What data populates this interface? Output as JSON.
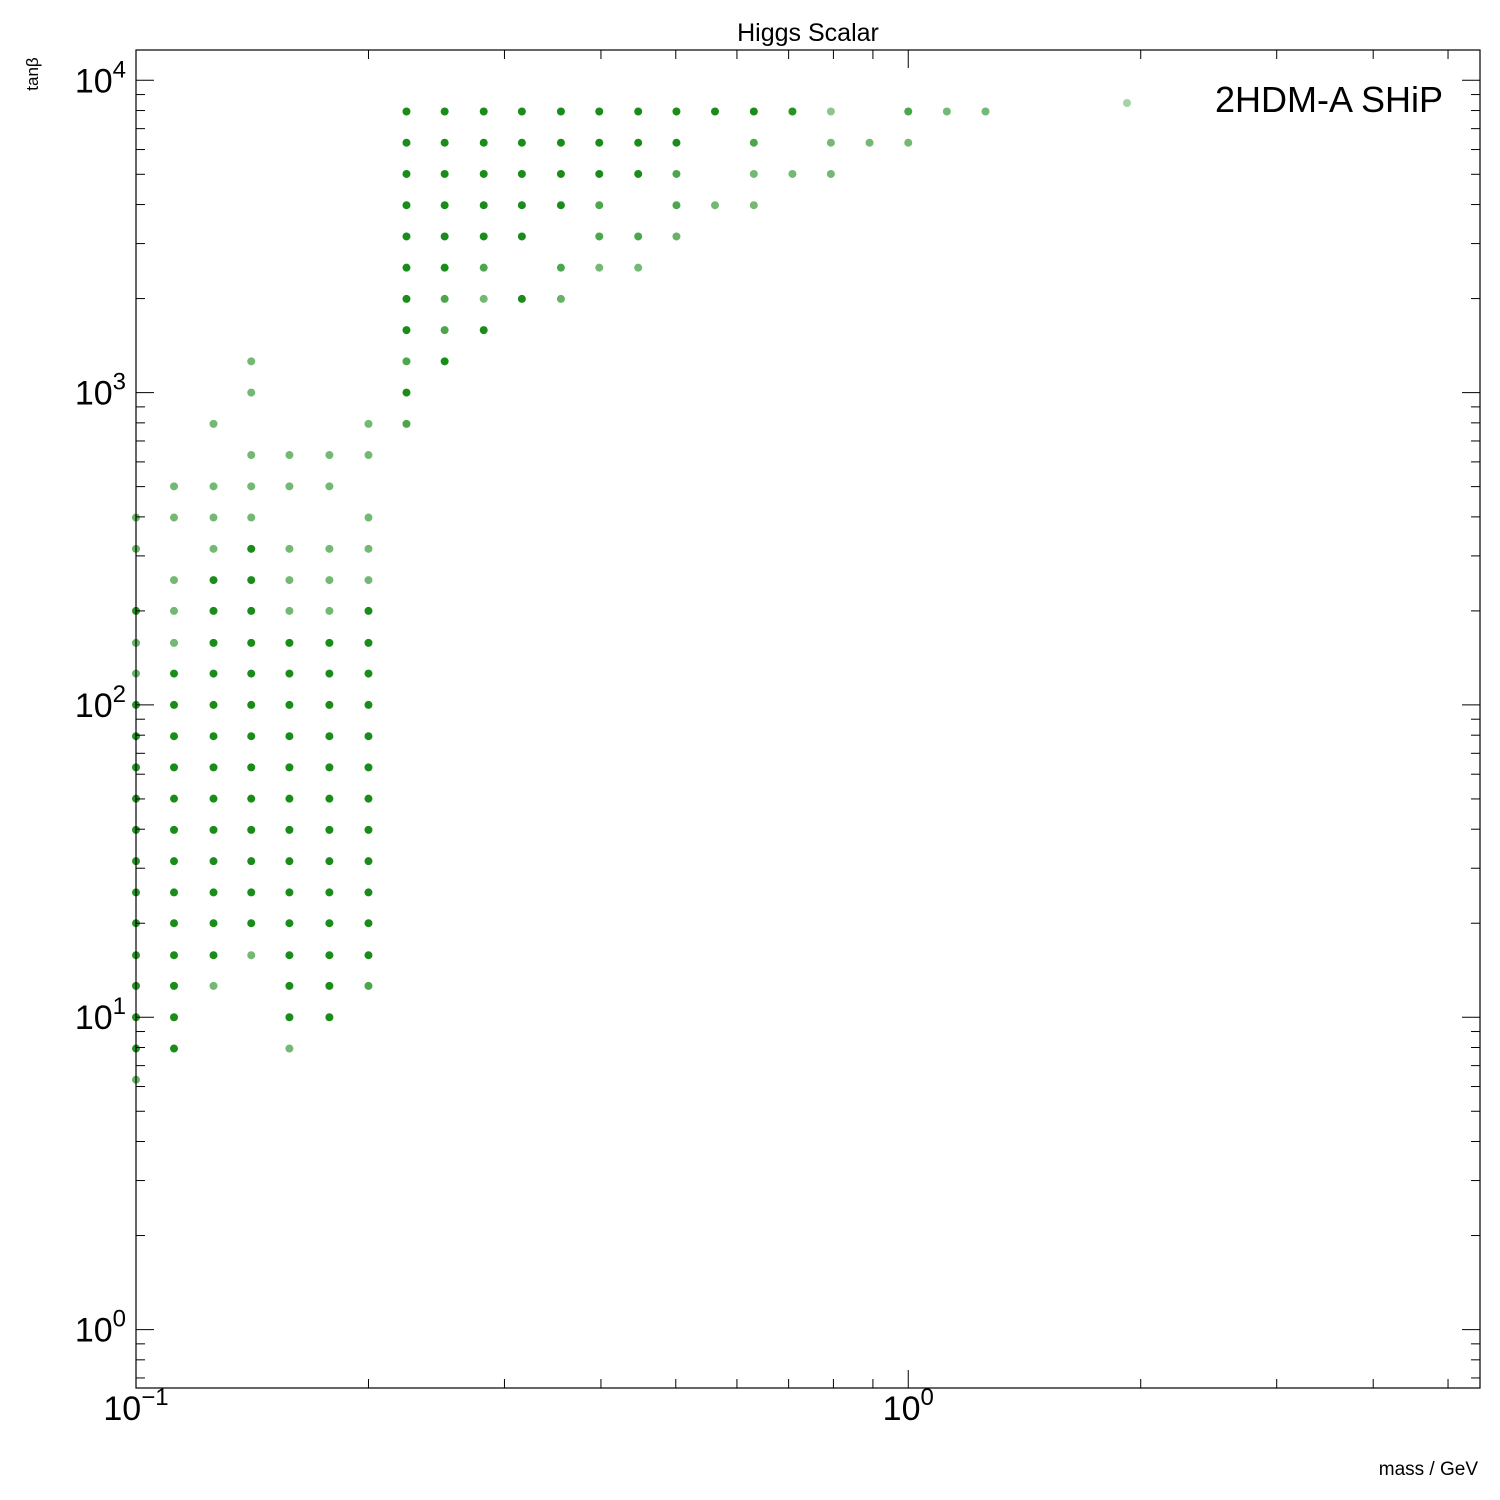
{
  "chart_data": {
    "type": "scatter",
    "title": "Higgs Scalar",
    "xlabel": "mass / GeV",
    "ylabel": "tanβ",
    "xscale": "log",
    "yscale": "log",
    "xlim": [
      0.1,
      5.5
    ],
    "ylim": [
      0.65,
      12500
    ],
    "x_major_ticks": [
      {
        "value": 0.1,
        "base": "10",
        "exp": "−1"
      },
      {
        "value": 1,
        "base": "10",
        "exp": "0"
      }
    ],
    "y_major_ticks": [
      {
        "value": 1,
        "base": "10",
        "exp": "0"
      },
      {
        "value": 10,
        "base": "10",
        "exp": "1"
      },
      {
        "value": 100,
        "base": "10",
        "exp": "2"
      },
      {
        "value": 1000,
        "base": "10",
        "exp": "3"
      },
      {
        "value": 10000,
        "base": "10",
        "exp": "4"
      }
    ],
    "legend": {
      "label": "2HDM-A SHiP",
      "placement": "top-right"
    },
    "series": [
      {
        "name": "2HDM-A SHiP",
        "color": "#008000",
        "marker": "circle",
        "points": [
          {
            "x": 0.1,
            "y": 6.31,
            "o": 0.6
          },
          {
            "x": 0.1,
            "y": 7.94,
            "o": 0.85
          },
          {
            "x": 0.1,
            "y": 10,
            "o": 0.85
          },
          {
            "x": 0.1,
            "y": 12.6,
            "o": 0.85
          },
          {
            "x": 0.1,
            "y": 15.8,
            "o": 0.85
          },
          {
            "x": 0.1,
            "y": 20,
            "o": 0.85
          },
          {
            "x": 0.1,
            "y": 25.1,
            "o": 0.85
          },
          {
            "x": 0.1,
            "y": 31.6,
            "o": 0.85
          },
          {
            "x": 0.1,
            "y": 39.8,
            "o": 0.85
          },
          {
            "x": 0.1,
            "y": 50.1,
            "o": 0.85
          },
          {
            "x": 0.1,
            "y": 63.1,
            "o": 0.85
          },
          {
            "x": 0.1,
            "y": 79.4,
            "o": 0.85
          },
          {
            "x": 0.1,
            "y": 100,
            "o": 0.85
          },
          {
            "x": 0.1,
            "y": 126,
            "o": 0.6
          },
          {
            "x": 0.1,
            "y": 158,
            "o": 0.6
          },
          {
            "x": 0.1,
            "y": 200,
            "o": 0.85
          },
          {
            "x": 0.1,
            "y": 316,
            "o": 0.6
          },
          {
            "x": 0.1,
            "y": 398,
            "o": 0.6
          },
          {
            "x": 0.112,
            "y": 7.94,
            "o": 0.9
          },
          {
            "x": 0.112,
            "y": 10,
            "o": 0.9
          },
          {
            "x": 0.112,
            "y": 12.6,
            "o": 0.9
          },
          {
            "x": 0.112,
            "y": 15.8,
            "o": 0.9
          },
          {
            "x": 0.112,
            "y": 20,
            "o": 0.9
          },
          {
            "x": 0.112,
            "y": 25.1,
            "o": 0.9
          },
          {
            "x": 0.112,
            "y": 31.6,
            "o": 0.9
          },
          {
            "x": 0.112,
            "y": 39.8,
            "o": 0.9
          },
          {
            "x": 0.112,
            "y": 50.1,
            "o": 0.9
          },
          {
            "x": 0.112,
            "y": 63.1,
            "o": 0.9
          },
          {
            "x": 0.112,
            "y": 79.4,
            "o": 0.9
          },
          {
            "x": 0.112,
            "y": 100,
            "o": 0.9
          },
          {
            "x": 0.112,
            "y": 126,
            "o": 0.9
          },
          {
            "x": 0.112,
            "y": 158,
            "o": 0.55
          },
          {
            "x": 0.112,
            "y": 200,
            "o": 0.55
          },
          {
            "x": 0.112,
            "y": 251,
            "o": 0.55
          },
          {
            "x": 0.112,
            "y": 398,
            "o": 0.55
          },
          {
            "x": 0.112,
            "y": 501,
            "o": 0.55
          },
          {
            "x": 0.126,
            "y": 12.6,
            "o": 0.55
          },
          {
            "x": 0.126,
            "y": 15.8,
            "o": 0.9
          },
          {
            "x": 0.126,
            "y": 20,
            "o": 0.9
          },
          {
            "x": 0.126,
            "y": 25.1,
            "o": 0.9
          },
          {
            "x": 0.126,
            "y": 31.6,
            "o": 0.9
          },
          {
            "x": 0.126,
            "y": 39.8,
            "o": 0.9
          },
          {
            "x": 0.126,
            "y": 50.1,
            "o": 0.9
          },
          {
            "x": 0.126,
            "y": 63.1,
            "o": 0.9
          },
          {
            "x": 0.126,
            "y": 79.4,
            "o": 0.9
          },
          {
            "x": 0.126,
            "y": 100,
            "o": 0.9
          },
          {
            "x": 0.126,
            "y": 126,
            "o": 0.9
          },
          {
            "x": 0.126,
            "y": 158,
            "o": 0.9
          },
          {
            "x": 0.126,
            "y": 200,
            "o": 0.9
          },
          {
            "x": 0.126,
            "y": 251,
            "o": 0.9
          },
          {
            "x": 0.126,
            "y": 316,
            "o": 0.55
          },
          {
            "x": 0.126,
            "y": 398,
            "o": 0.55
          },
          {
            "x": 0.126,
            "y": 501,
            "o": 0.55
          },
          {
            "x": 0.126,
            "y": 794,
            "o": 0.55
          },
          {
            "x": 0.141,
            "y": 15.8,
            "o": 0.55
          },
          {
            "x": 0.141,
            "y": 20,
            "o": 0.9
          },
          {
            "x": 0.141,
            "y": 25.1,
            "o": 0.9
          },
          {
            "x": 0.141,
            "y": 31.6,
            "o": 0.9
          },
          {
            "x": 0.141,
            "y": 39.8,
            "o": 0.9
          },
          {
            "x": 0.141,
            "y": 50.1,
            "o": 0.9
          },
          {
            "x": 0.141,
            "y": 63.1,
            "o": 0.9
          },
          {
            "x": 0.141,
            "y": 79.4,
            "o": 0.9
          },
          {
            "x": 0.141,
            "y": 100,
            "o": 0.9
          },
          {
            "x": 0.141,
            "y": 126,
            "o": 0.9
          },
          {
            "x": 0.141,
            "y": 158,
            "o": 0.9
          },
          {
            "x": 0.141,
            "y": 200,
            "o": 0.9
          },
          {
            "x": 0.141,
            "y": 251,
            "o": 0.9
          },
          {
            "x": 0.141,
            "y": 316,
            "o": 0.9
          },
          {
            "x": 0.141,
            "y": 398,
            "o": 0.55
          },
          {
            "x": 0.141,
            "y": 501,
            "o": 0.55
          },
          {
            "x": 0.141,
            "y": 631,
            "o": 0.55
          },
          {
            "x": 0.141,
            "y": 1000,
            "o": 0.55
          },
          {
            "x": 0.141,
            "y": 1259,
            "o": 0.55
          },
          {
            "x": 0.158,
            "y": 7.94,
            "o": 0.55
          },
          {
            "x": 0.158,
            "y": 10,
            "o": 0.9
          },
          {
            "x": 0.158,
            "y": 12.6,
            "o": 0.9
          },
          {
            "x": 0.158,
            "y": 15.8,
            "o": 0.9
          },
          {
            "x": 0.158,
            "y": 20,
            "o": 0.9
          },
          {
            "x": 0.158,
            "y": 25.1,
            "o": 0.9
          },
          {
            "x": 0.158,
            "y": 31.6,
            "o": 0.9
          },
          {
            "x": 0.158,
            "y": 39.8,
            "o": 0.9
          },
          {
            "x": 0.158,
            "y": 50.1,
            "o": 0.9
          },
          {
            "x": 0.158,
            "y": 63.1,
            "o": 0.9
          },
          {
            "x": 0.158,
            "y": 79.4,
            "o": 0.9
          },
          {
            "x": 0.158,
            "y": 100,
            "o": 0.9
          },
          {
            "x": 0.158,
            "y": 126,
            "o": 0.9
          },
          {
            "x": 0.158,
            "y": 158,
            "o": 0.9
          },
          {
            "x": 0.158,
            "y": 200,
            "o": 0.55
          },
          {
            "x": 0.158,
            "y": 251,
            "o": 0.55
          },
          {
            "x": 0.158,
            "y": 316,
            "o": 0.55
          },
          {
            "x": 0.158,
            "y": 501,
            "o": 0.55
          },
          {
            "x": 0.158,
            "y": 631,
            "o": 0.55
          },
          {
            "x": 0.178,
            "y": 10,
            "o": 0.9
          },
          {
            "x": 0.178,
            "y": 12.6,
            "o": 0.9
          },
          {
            "x": 0.178,
            "y": 15.8,
            "o": 0.9
          },
          {
            "x": 0.178,
            "y": 20,
            "o": 0.9
          },
          {
            "x": 0.178,
            "y": 25.1,
            "o": 0.9
          },
          {
            "x": 0.178,
            "y": 31.6,
            "o": 0.9
          },
          {
            "x": 0.178,
            "y": 39.8,
            "o": 0.9
          },
          {
            "x": 0.178,
            "y": 50.1,
            "o": 0.9
          },
          {
            "x": 0.178,
            "y": 63.1,
            "o": 0.9
          },
          {
            "x": 0.178,
            "y": 79.4,
            "o": 0.9
          },
          {
            "x": 0.178,
            "y": 100,
            "o": 0.9
          },
          {
            "x": 0.178,
            "y": 126,
            "o": 0.9
          },
          {
            "x": 0.178,
            "y": 158,
            "o": 0.9
          },
          {
            "x": 0.178,
            "y": 200,
            "o": 0.55
          },
          {
            "x": 0.178,
            "y": 251,
            "o": 0.55
          },
          {
            "x": 0.178,
            "y": 316,
            "o": 0.55
          },
          {
            "x": 0.178,
            "y": 501,
            "o": 0.55
          },
          {
            "x": 0.178,
            "y": 631,
            "o": 0.55
          },
          {
            "x": 0.2,
            "y": 12.6,
            "o": 0.7
          },
          {
            "x": 0.2,
            "y": 15.8,
            "o": 0.9
          },
          {
            "x": 0.2,
            "y": 20,
            "o": 0.9
          },
          {
            "x": 0.2,
            "y": 25.1,
            "o": 0.9
          },
          {
            "x": 0.2,
            "y": 31.6,
            "o": 0.9
          },
          {
            "x": 0.2,
            "y": 39.8,
            "o": 0.9
          },
          {
            "x": 0.2,
            "y": 50.1,
            "o": 0.9
          },
          {
            "x": 0.2,
            "y": 63.1,
            "o": 0.9
          },
          {
            "x": 0.2,
            "y": 79.4,
            "o": 0.9
          },
          {
            "x": 0.2,
            "y": 100,
            "o": 0.9
          },
          {
            "x": 0.2,
            "y": 126,
            "o": 0.9
          },
          {
            "x": 0.2,
            "y": 158,
            "o": 0.9
          },
          {
            "x": 0.2,
            "y": 200,
            "o": 0.9
          },
          {
            "x": 0.2,
            "y": 251,
            "o": 0.55
          },
          {
            "x": 0.2,
            "y": 316,
            "o": 0.55
          },
          {
            "x": 0.2,
            "y": 398,
            "o": 0.55
          },
          {
            "x": 0.2,
            "y": 631,
            "o": 0.55
          },
          {
            "x": 0.2,
            "y": 794,
            "o": 0.55
          },
          {
            "x": 0.224,
            "y": 794,
            "o": 0.7
          },
          {
            "x": 0.224,
            "y": 1000,
            "o": 0.9
          },
          {
            "x": 0.224,
            "y": 1259,
            "o": 0.7
          },
          {
            "x": 0.224,
            "y": 1585,
            "o": 0.9
          },
          {
            "x": 0.224,
            "y": 1995,
            "o": 0.9
          },
          {
            "x": 0.224,
            "y": 2512,
            "o": 0.9
          },
          {
            "x": 0.224,
            "y": 3162,
            "o": 0.9
          },
          {
            "x": 0.224,
            "y": 3981,
            "o": 0.9
          },
          {
            "x": 0.224,
            "y": 5012,
            "o": 0.9
          },
          {
            "x": 0.224,
            "y": 6310,
            "o": 0.9
          },
          {
            "x": 0.224,
            "y": 7943,
            "o": 0.9
          },
          {
            "x": 0.251,
            "y": 1259,
            "o": 0.9
          },
          {
            "x": 0.251,
            "y": 1585,
            "o": 0.7
          },
          {
            "x": 0.251,
            "y": 1995,
            "o": 0.7
          },
          {
            "x": 0.251,
            "y": 2512,
            "o": 0.9
          },
          {
            "x": 0.251,
            "y": 3162,
            "o": 0.9
          },
          {
            "x": 0.251,
            "y": 3981,
            "o": 0.9
          },
          {
            "x": 0.251,
            "y": 5012,
            "o": 0.9
          },
          {
            "x": 0.251,
            "y": 6310,
            "o": 0.9
          },
          {
            "x": 0.251,
            "y": 7943,
            "o": 0.9
          },
          {
            "x": 0.282,
            "y": 1585,
            "o": 0.9
          },
          {
            "x": 0.282,
            "y": 1995,
            "o": 0.55
          },
          {
            "x": 0.282,
            "y": 2512,
            "o": 0.7
          },
          {
            "x": 0.282,
            "y": 3162,
            "o": 0.9
          },
          {
            "x": 0.282,
            "y": 3981,
            "o": 0.9
          },
          {
            "x": 0.282,
            "y": 5012,
            "o": 0.9
          },
          {
            "x": 0.282,
            "y": 6310,
            "o": 0.9
          },
          {
            "x": 0.282,
            "y": 7943,
            "o": 0.9
          },
          {
            "x": 0.316,
            "y": 1995,
            "o": 0.9
          },
          {
            "x": 0.316,
            "y": 3162,
            "o": 0.9
          },
          {
            "x": 0.316,
            "y": 3981,
            "o": 0.9
          },
          {
            "x": 0.316,
            "y": 5012,
            "o": 0.9
          },
          {
            "x": 0.316,
            "y": 6310,
            "o": 0.9
          },
          {
            "x": 0.316,
            "y": 7943,
            "o": 0.9
          },
          {
            "x": 0.355,
            "y": 1995,
            "o": 0.6
          },
          {
            "x": 0.355,
            "y": 2512,
            "o": 0.7
          },
          {
            "x": 0.355,
            "y": 3981,
            "o": 0.9
          },
          {
            "x": 0.355,
            "y": 5012,
            "o": 0.9
          },
          {
            "x": 0.355,
            "y": 6310,
            "o": 0.9
          },
          {
            "x": 0.355,
            "y": 7943,
            "o": 0.9
          },
          {
            "x": 0.398,
            "y": 2512,
            "o": 0.55
          },
          {
            "x": 0.398,
            "y": 3162,
            "o": 0.7
          },
          {
            "x": 0.398,
            "y": 3981,
            "o": 0.7
          },
          {
            "x": 0.398,
            "y": 5012,
            "o": 0.9
          },
          {
            "x": 0.398,
            "y": 6310,
            "o": 0.9
          },
          {
            "x": 0.398,
            "y": 7943,
            "o": 0.9
          },
          {
            "x": 0.447,
            "y": 2512,
            "o": 0.55
          },
          {
            "x": 0.447,
            "y": 3162,
            "o": 0.7
          },
          {
            "x": 0.447,
            "y": 5012,
            "o": 0.9
          },
          {
            "x": 0.447,
            "y": 6310,
            "o": 0.9
          },
          {
            "x": 0.447,
            "y": 7943,
            "o": 0.9
          },
          {
            "x": 0.501,
            "y": 3162,
            "o": 0.6
          },
          {
            "x": 0.501,
            "y": 3981,
            "o": 0.7
          },
          {
            "x": 0.501,
            "y": 5012,
            "o": 0.7
          },
          {
            "x": 0.501,
            "y": 6310,
            "o": 0.9
          },
          {
            "x": 0.501,
            "y": 7943,
            "o": 0.9
          },
          {
            "x": 0.562,
            "y": 3981,
            "o": 0.55
          },
          {
            "x": 0.562,
            "y": 7943,
            "o": 0.9
          },
          {
            "x": 0.631,
            "y": 3981,
            "o": 0.55
          },
          {
            "x": 0.631,
            "y": 5012,
            "o": 0.55
          },
          {
            "x": 0.631,
            "y": 6310,
            "o": 0.7
          },
          {
            "x": 0.631,
            "y": 7943,
            "o": 0.9
          },
          {
            "x": 0.708,
            "y": 5012,
            "o": 0.55
          },
          {
            "x": 0.708,
            "y": 7943,
            "o": 0.85
          },
          {
            "x": 0.794,
            "y": 5012,
            "o": 0.55
          },
          {
            "x": 0.794,
            "y": 6310,
            "o": 0.55
          },
          {
            "x": 0.794,
            "y": 7943,
            "o": 0.45
          },
          {
            "x": 0.891,
            "y": 6310,
            "o": 0.55
          },
          {
            "x": 1.0,
            "y": 6310,
            "o": 0.55
          },
          {
            "x": 1.0,
            "y": 7943,
            "o": 0.7
          },
          {
            "x": 1.122,
            "y": 7943,
            "o": 0.55
          },
          {
            "x": 1.259,
            "y": 7943,
            "o": 0.55
          }
        ]
      }
    ]
  }
}
